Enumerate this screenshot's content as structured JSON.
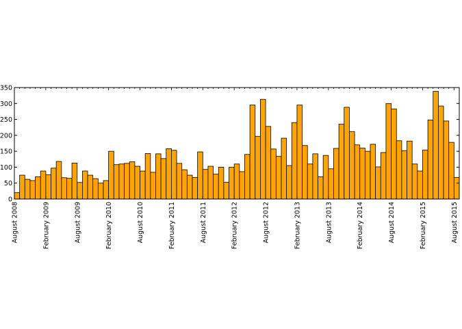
{
  "chart_data": {
    "type": "bar",
    "title": "",
    "xlabel": "",
    "ylabel": "",
    "ylim": [
      0,
      350
    ],
    "yticks": [
      0,
      50,
      100,
      150,
      200,
      250,
      300,
      350
    ],
    "xtick_labels": [
      "August 2008",
      "February 2009",
      "August 2009",
      "February 2010",
      "August 2010",
      "February 2011",
      "August 2011",
      "February 2012",
      "August 2012",
      "February 2013",
      "August 2013",
      "February 2014",
      "August 2014",
      "February 2015",
      "August 2015"
    ],
    "xtick_every_n_months": 6,
    "bar_color": "#ffa500",
    "grid": false,
    "legend": "none",
    "values": [
      20,
      75,
      62,
      58,
      70,
      88,
      76,
      97,
      118,
      67,
      65,
      113,
      52,
      88,
      75,
      64,
      50,
      58,
      150,
      108,
      110,
      112,
      117,
      103,
      88,
      143,
      84,
      142,
      127,
      158,
      153,
      112,
      92,
      75,
      68,
      148,
      93,
      103,
      78,
      100,
      53,
      100,
      110,
      86,
      140,
      295,
      197,
      313,
      228,
      157,
      134,
      191,
      105,
      240,
      295,
      168,
      110,
      142,
      70,
      137,
      95,
      159,
      235,
      288,
      212,
      170,
      160,
      150,
      172,
      101,
      146,
      300,
      283,
      183,
      152,
      182,
      110,
      88,
      154,
      248,
      338,
      292,
      245,
      178,
      68
    ]
  }
}
